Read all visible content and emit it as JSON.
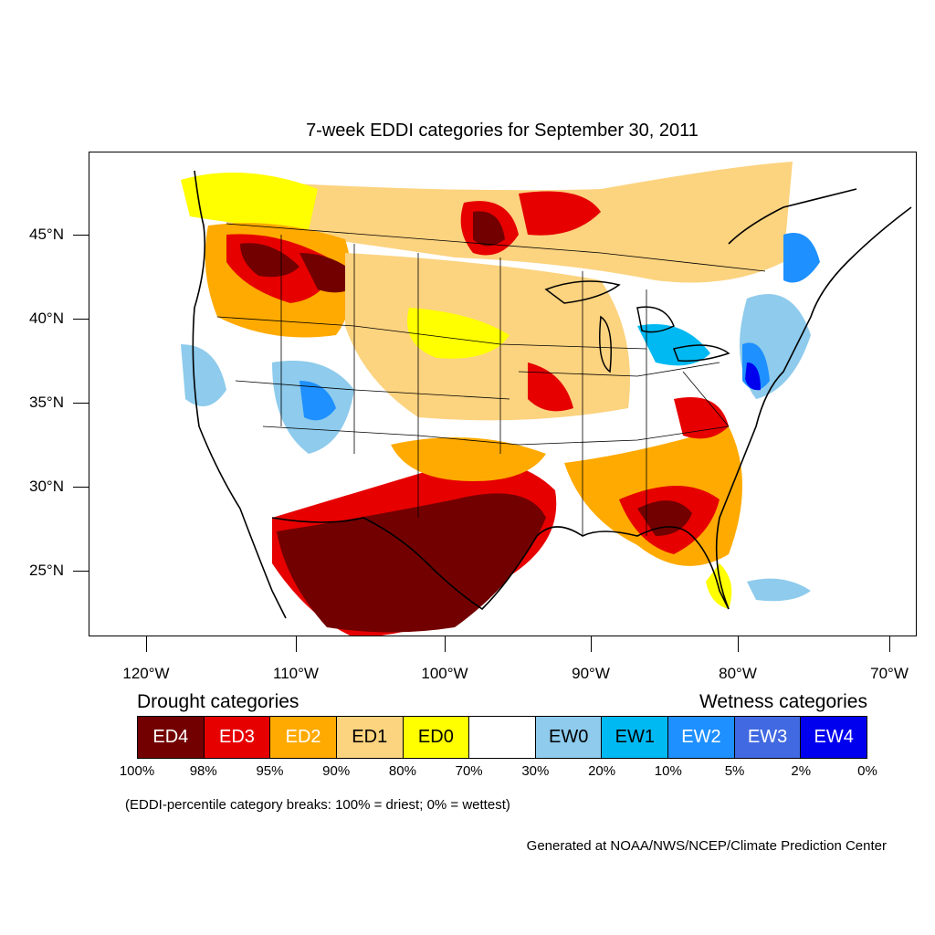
{
  "title": "7-week EDDI categories for September 30, 2011",
  "map": {
    "lat_labels": [
      "45°N",
      "40°N",
      "35°N",
      "30°N",
      "25°N"
    ],
    "lon_labels": [
      "120°W",
      "110°W",
      "100°W",
      "90°W",
      "80°W",
      "70°W"
    ]
  },
  "legend": {
    "drought_heading": "Drought categories",
    "wetness_heading": "Wetness categories",
    "categories": [
      {
        "label": "ED4",
        "color": "#730000",
        "text_color": "#ffffff"
      },
      {
        "label": "ED3",
        "color": "#e60000",
        "text_color": "#ffffff"
      },
      {
        "label": "ED2",
        "color": "#ffaa00",
        "text_color": "#ffffff"
      },
      {
        "label": "ED1",
        "color": "#fcd37f",
        "text_color": "#000000"
      },
      {
        "label": "ED0",
        "color": "#ffff00",
        "text_color": "#000000"
      },
      {
        "label": "",
        "color": "#ffffff",
        "text_color": "#000000"
      },
      {
        "label": "EW0",
        "color": "#8ecbec",
        "text_color": "#000000"
      },
      {
        "label": "EW1",
        "color": "#00b9f2",
        "text_color": "#000000"
      },
      {
        "label": "EW2",
        "color": "#1e90ff",
        "text_color": "#ffffff"
      },
      {
        "label": "EW3",
        "color": "#4169e1",
        "text_color": "#ffffff"
      },
      {
        "label": "EW4",
        "color": "#0000ee",
        "text_color": "#ffffff"
      }
    ],
    "breaks": [
      "100%",
      "98%",
      "95%",
      "90%",
      "80%",
      "70%",
      "30%",
      "20%",
      "10%",
      "5%",
      "2%",
      "0%"
    ]
  },
  "note": "(EDDI-percentile category breaks: 100% = driest; 0% = wettest)",
  "credit": "Generated at NOAA/NWS/NCEP/Climate Prediction Center"
}
